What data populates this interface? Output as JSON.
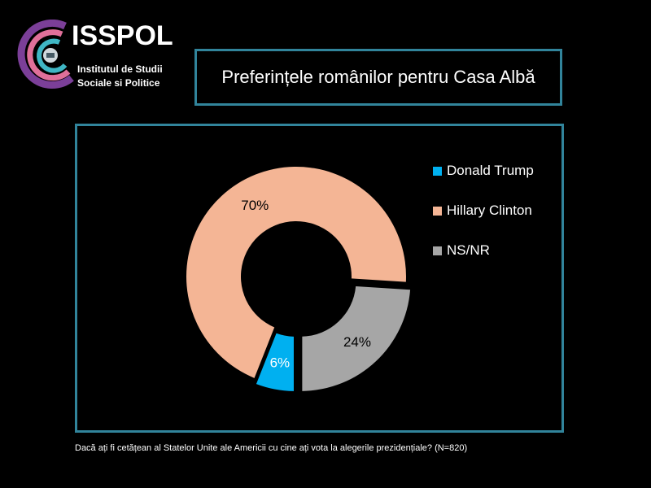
{
  "logo": {
    "name": "ISSPOL",
    "line1": "Institutul de Studii",
    "line2": "Sociale si Politice"
  },
  "title": "Preferințele românilor pentru Casa Albă",
  "footnote": "Dacă ați fi cetățean al Statelor Unite ale Americii cu cine ați vota la alegerile prezidențiale? (N=820)",
  "chart_data": {
    "type": "pie",
    "variant": "donut",
    "title": "Preferințele românilor pentru Casa Albă",
    "categories": [
      "Donald Trump",
      "Hillary Clinton",
      "NS/NR"
    ],
    "values": [
      6,
      70,
      24
    ],
    "labels": [
      "6%",
      "70%",
      "24%"
    ],
    "colors": [
      "#00b0f0",
      "#f4b595",
      "#a6a6a6"
    ],
    "legend_position": "right"
  }
}
